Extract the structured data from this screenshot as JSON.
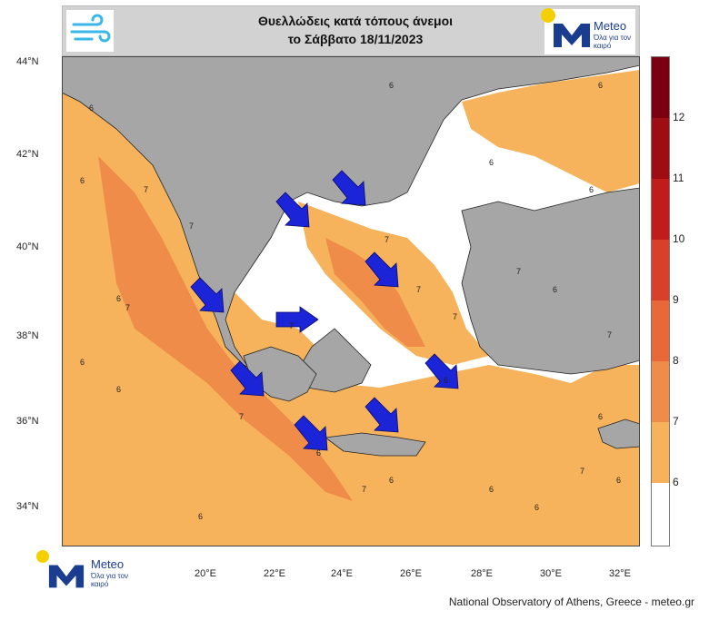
{
  "header": {
    "title_line1": "Θυελλώδεις κατά τόπους άνεμοι",
    "title_line2": "το Σάββατο 18/11/2023",
    "brand_name": "Meteo",
    "brand_tagline": "Όλα για τον καιρό"
  },
  "map": {
    "lat_labels": [
      "44°N",
      "42°N",
      "40°N",
      "38°N",
      "36°N",
      "34°N"
    ],
    "lon_labels": [
      "20°E",
      "22°E",
      "24°E",
      "26°E",
      "28°E",
      "30°E",
      "32°E"
    ],
    "contour_numbers": [
      "6",
      "6",
      "6",
      "6",
      "6",
      "6",
      "6",
      "6",
      "6",
      "6",
      "6",
      "6",
      "6",
      "6",
      "6",
      "6",
      "6",
      "6",
      "7",
      "7",
      "7",
      "7",
      "7",
      "7",
      "7",
      "7",
      "7",
      "7",
      "7",
      "7"
    ],
    "colors": {
      "land": "#a6a6a6",
      "sea_calm": "#ffffff",
      "beaufort_6": "#f6b35c",
      "beaufort_7": "#f08c4a",
      "arrow": "#1b24d6"
    }
  },
  "colorbar": {
    "labels": [
      "12",
      "11",
      "10",
      "9",
      "8",
      "7",
      "6"
    ],
    "colors": [
      "#ffffff",
      "#f6b35c",
      "#f08c4a",
      "#e8683a",
      "#d8402a",
      "#c01c1c",
      "#9e0c14",
      "#7a0010"
    ]
  },
  "footer": {
    "brand_name": "Meteo",
    "brand_tagline": "Όλα για τον καιρό",
    "source": "National Observatory of Athens, Greece - meteo.gr"
  }
}
